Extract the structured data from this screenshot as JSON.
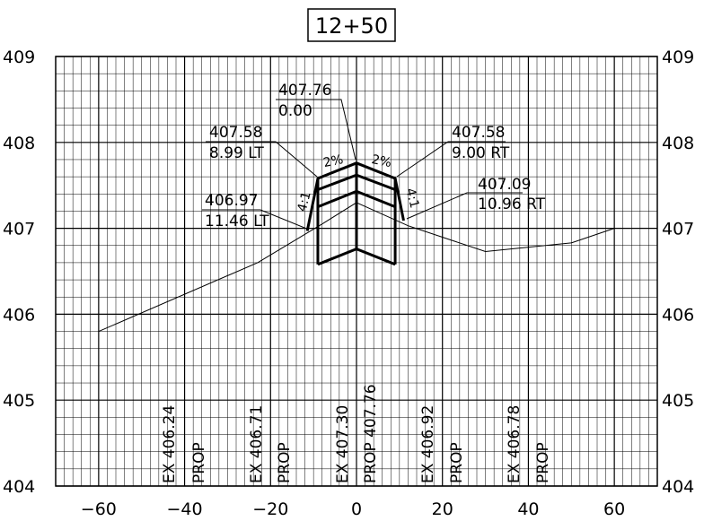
{
  "station": "12+50",
  "grid": {
    "x_min": -70,
    "x_max": 70,
    "x_minor": 2,
    "x_major": 20,
    "y_min": 404,
    "y_max": 409,
    "y_minor": 0.2,
    "y_major": 1
  },
  "axis": {
    "x_ticks": [
      {
        "value": -60,
        "label": "−60"
      },
      {
        "value": -40,
        "label": "−40"
      },
      {
        "value": -20,
        "label": "−20"
      },
      {
        "value": 0,
        "label": "0"
      },
      {
        "value": 20,
        "label": "20"
      },
      {
        "value": 40,
        "label": "40"
      },
      {
        "value": 60,
        "label": "60"
      }
    ],
    "y_ticks": [
      {
        "value": 409,
        "label": "409"
      },
      {
        "value": 408,
        "label": "408"
      },
      {
        "value": 407,
        "label": "407"
      },
      {
        "value": 406,
        "label": "406"
      },
      {
        "value": 405,
        "label": "405"
      },
      {
        "value": 404,
        "label": "404"
      }
    ]
  },
  "existing_ground": [
    [
      -60,
      405.8
    ],
    [
      -23,
      406.6
    ],
    [
      -8,
      407.05
    ],
    [
      0,
      407.3
    ],
    [
      12,
      407.03
    ],
    [
      30,
      406.73
    ],
    [
      50,
      406.83
    ],
    [
      60,
      407.0
    ]
  ],
  "proposed": {
    "top": [
      [
        -11.46,
        406.97
      ],
      [
        -8.99,
        407.58
      ],
      [
        0,
        407.76
      ],
      [
        9.0,
        407.58
      ],
      [
        10.96,
        407.09
      ]
    ],
    "layer2": [
      [
        -8.99,
        407.45
      ],
      [
        0,
        407.62
      ],
      [
        9.0,
        407.45
      ]
    ],
    "layer3": [
      [
        -8.99,
        407.25
      ],
      [
        0,
        407.43
      ],
      [
        9.0,
        407.25
      ]
    ],
    "bottom": [
      [
        -8.99,
        406.58
      ],
      [
        0,
        406.76
      ],
      [
        9.0,
        406.58
      ]
    ],
    "verticals": [
      [
        [
          -8.99,
          407.58
        ],
        [
          -8.99,
          406.58
        ]
      ],
      [
        [
          0,
          407.76
        ],
        [
          0,
          406.76
        ]
      ],
      [
        [
          9.0,
          407.58
        ],
        [
          9.0,
          406.58
        ]
      ]
    ]
  },
  "callouts": [
    {
      "elev": "407.76",
      "offset": "0.00"
    },
    {
      "elev": "407.58",
      "offset": "8.99  LT"
    },
    {
      "elev": "407.58",
      "offset": "9.00  RT"
    },
    {
      "elev": "406.97",
      "offset": "11.46  LT"
    },
    {
      "elev": "407.09",
      "offset": "10.96  RT"
    }
  ],
  "slope_labels": {
    "left_cross": "2%",
    "right_cross": "2%",
    "left_side": "4:1",
    "right_side": "4:1"
  },
  "bottom_labels": [
    {
      "text": "EX  406.24"
    },
    {
      "text": "PROP"
    },
    {
      "text": "EX  406.71"
    },
    {
      "text": "PROP"
    },
    {
      "text": "EX  407.30"
    },
    {
      "text": "PROP  407.76"
    },
    {
      "text": "EX  406.92"
    },
    {
      "text": "PROP"
    },
    {
      "text": "EX  406.78"
    },
    {
      "text": "PROP"
    }
  ]
}
